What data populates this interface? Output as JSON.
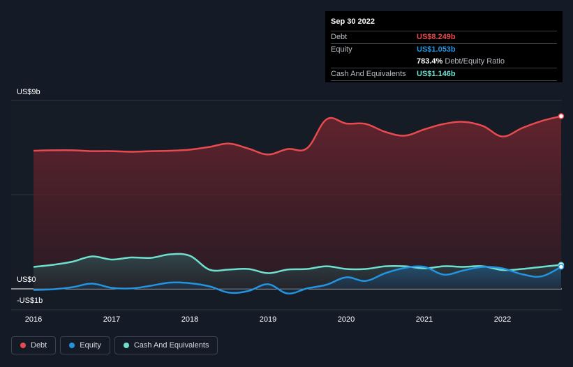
{
  "tooltip": {
    "date": "Sep 30 2022",
    "debt_label": "Debt",
    "debt_value": "US$8.249b",
    "equity_label": "Equity",
    "equity_value": "US$1.053b",
    "ratio_value": "783.4%",
    "ratio_label": "Debt/Equity Ratio",
    "cash_label": "Cash And Equivalents",
    "cash_value": "US$1.146b"
  },
  "colors": {
    "debt": "#e84a4f",
    "equity": "#2394df",
    "cash": "#6fe0cf",
    "background": "#151b26"
  },
  "legend": [
    {
      "label": "Debt",
      "color": "#e84a4f"
    },
    {
      "label": "Equity",
      "color": "#2394df"
    },
    {
      "label": "Cash And Equivalents",
      "color": "#6fe0cf"
    }
  ],
  "chart_data": {
    "type": "area",
    "y_unit": "US$ billions",
    "ylim": [
      -1,
      9
    ],
    "y_tick_labels": [
      {
        "value": 9,
        "label": "US$9b"
      },
      {
        "value": 0,
        "label": "US$0"
      },
      {
        "value": -1,
        "label": "-US$1b"
      }
    ],
    "x_ticks": [
      {
        "value": 2016,
        "label": "2016"
      },
      {
        "value": 2017,
        "label": "2017"
      },
      {
        "value": 2018,
        "label": "2018"
      },
      {
        "value": 2019,
        "label": "2019"
      },
      {
        "value": 2020,
        "label": "2020"
      },
      {
        "value": 2021,
        "label": "2021"
      },
      {
        "value": 2022,
        "label": "2022"
      }
    ],
    "xlim": [
      2015.75,
      2022.75
    ],
    "grid": true,
    "legend_position": "bottom-left",
    "series": [
      {
        "name": "Debt",
        "x": [
          2016.0,
          2016.25,
          2016.5,
          2016.75,
          2017.0,
          2017.25,
          2017.5,
          2017.75,
          2018.0,
          2018.25,
          2018.5,
          2018.75,
          2019.0,
          2019.25,
          2019.5,
          2019.75,
          2020.0,
          2020.25,
          2020.5,
          2020.75,
          2021.0,
          2021.25,
          2021.5,
          2021.75,
          2022.0,
          2022.25,
          2022.5,
          2022.75
        ],
        "values": [
          6.6,
          6.62,
          6.62,
          6.58,
          6.58,
          6.55,
          6.58,
          6.6,
          6.65,
          6.78,
          6.94,
          6.7,
          6.42,
          6.68,
          6.72,
          8.1,
          7.9,
          7.88,
          7.5,
          7.32,
          7.62,
          7.88,
          7.98,
          7.78,
          7.28,
          7.68,
          8.02,
          8.249
        ]
      },
      {
        "name": "Equity",
        "x": [
          2016.0,
          2016.25,
          2016.5,
          2016.75,
          2017.0,
          2017.25,
          2017.5,
          2017.75,
          2018.0,
          2018.25,
          2018.5,
          2018.75,
          2019.0,
          2019.25,
          2019.5,
          2019.75,
          2020.0,
          2020.25,
          2020.5,
          2020.75,
          2021.0,
          2021.25,
          2021.5,
          2021.75,
          2022.0,
          2022.25,
          2022.5,
          2022.75
        ],
        "values": [
          -0.05,
          -0.02,
          0.08,
          0.25,
          0.05,
          0.02,
          0.15,
          0.3,
          0.27,
          0.12,
          -0.18,
          -0.1,
          0.22,
          -0.22,
          0.02,
          0.2,
          0.55,
          0.38,
          0.75,
          1.0,
          1.05,
          0.68,
          0.88,
          1.05,
          0.98,
          0.7,
          0.6,
          1.053
        ]
      },
      {
        "name": "Cash And Equivalents",
        "x": [
          2016.0,
          2016.25,
          2016.5,
          2016.75,
          2017.0,
          2017.25,
          2017.5,
          2017.75,
          2018.0,
          2018.25,
          2018.5,
          2018.75,
          2019.0,
          2019.25,
          2019.5,
          2019.75,
          2020.0,
          2020.25,
          2020.5,
          2020.75,
          2021.0,
          2021.25,
          2021.5,
          2021.75,
          2022.0,
          2022.25,
          2022.5,
          2022.75
        ],
        "values": [
          1.05,
          1.15,
          1.3,
          1.55,
          1.4,
          1.5,
          1.48,
          1.65,
          1.58,
          0.92,
          0.92,
          0.95,
          0.75,
          0.92,
          0.95,
          1.08,
          0.95,
          0.95,
          1.08,
          1.08,
          0.98,
          1.08,
          1.05,
          1.08,
          0.9,
          0.95,
          1.05,
          1.146
        ]
      }
    ]
  }
}
